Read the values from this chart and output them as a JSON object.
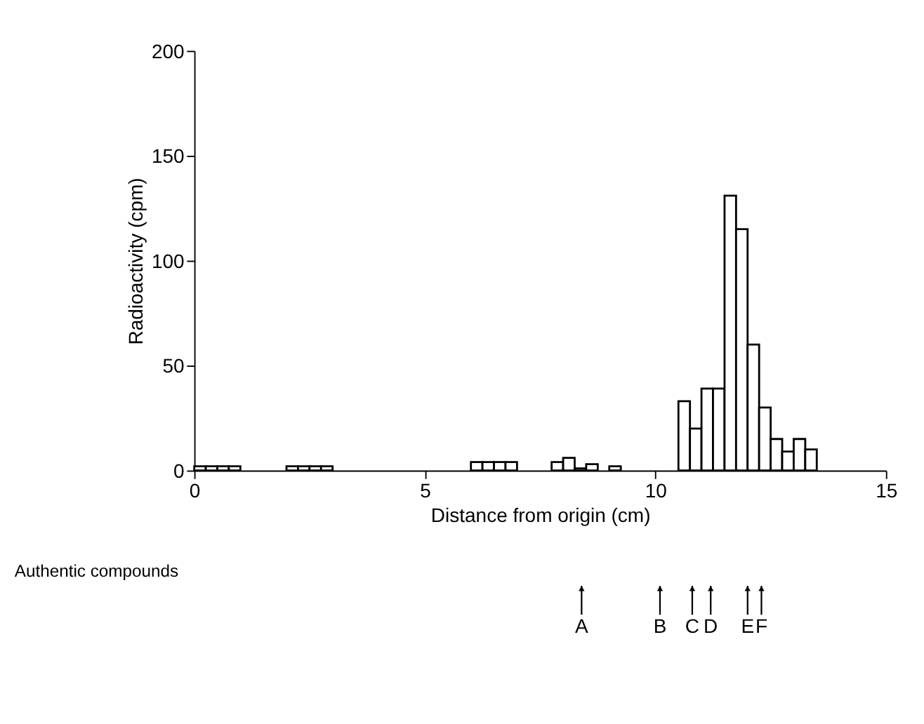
{
  "chart_data": {
    "type": "histogram",
    "xlabel": "Distance from origin (cm)",
    "ylabel": "Radioactivity (cpm)",
    "color": "#ffffff",
    "bins": [
      0,
      0.25,
      0.5,
      0.75,
      1,
      1.25,
      1.5,
      1.75,
      2,
      2.25,
      2.5,
      2.75,
      3,
      3.25,
      3.5,
      3.75,
      4,
      4.25,
      4.5,
      4.75,
      5,
      5.25,
      5.5,
      5.75,
      6,
      6.25,
      6.5,
      6.75,
      7,
      7.25,
      7.5,
      7.75,
      8,
      8.25,
      8.5,
      8.75,
      9,
      9.25,
      9.5,
      9.75,
      10,
      10.25,
      10.5,
      10.75,
      11,
      11.25,
      11.5,
      11.75,
      12,
      12.25,
      12.5,
      12.75,
      13,
      13.25,
      13.5,
      13.75,
      14,
      14.25,
      14.5,
      14.75,
      15
    ],
    "values": [
      2,
      2,
      2,
      2,
      null,
      null,
      null,
      null,
      2,
      2,
      2,
      2,
      null,
      null,
      null,
      null,
      null,
      null,
      null,
      null,
      null,
      null,
      null,
      null,
      4,
      4,
      4,
      4,
      null,
      null,
      null,
      4,
      6,
      1,
      3,
      null,
      2,
      null,
      null,
      null,
      null,
      null,
      33,
      20,
      39,
      39,
      131,
      115,
      60,
      30,
      15,
      9,
      15,
      10,
      null,
      null,
      null,
      null,
      null,
      null
    ],
    "xlim": [
      0,
      15
    ],
    "xticks": [
      0,
      5,
      10,
      15
    ],
    "ylim": [
      0,
      200
    ],
    "yticks": [
      0,
      50,
      100,
      150,
      200
    ],
    "grid": false,
    "annotations": [
      "Authentic compounds"
    ],
    "ref_lines": [
      {
        "axis": "x",
        "value": 8.4,
        "label": "A"
      },
      {
        "axis": "x",
        "value": 10.1,
        "label": "B"
      },
      {
        "axis": "x",
        "value": 10.8,
        "label": "C"
      },
      {
        "axis": "x",
        "value": 11.2,
        "label": "D"
      },
      {
        "axis": "x",
        "value": 12.0,
        "label": "E"
      },
      {
        "axis": "x",
        "value": 12.3,
        "label": "F"
      }
    ]
  }
}
